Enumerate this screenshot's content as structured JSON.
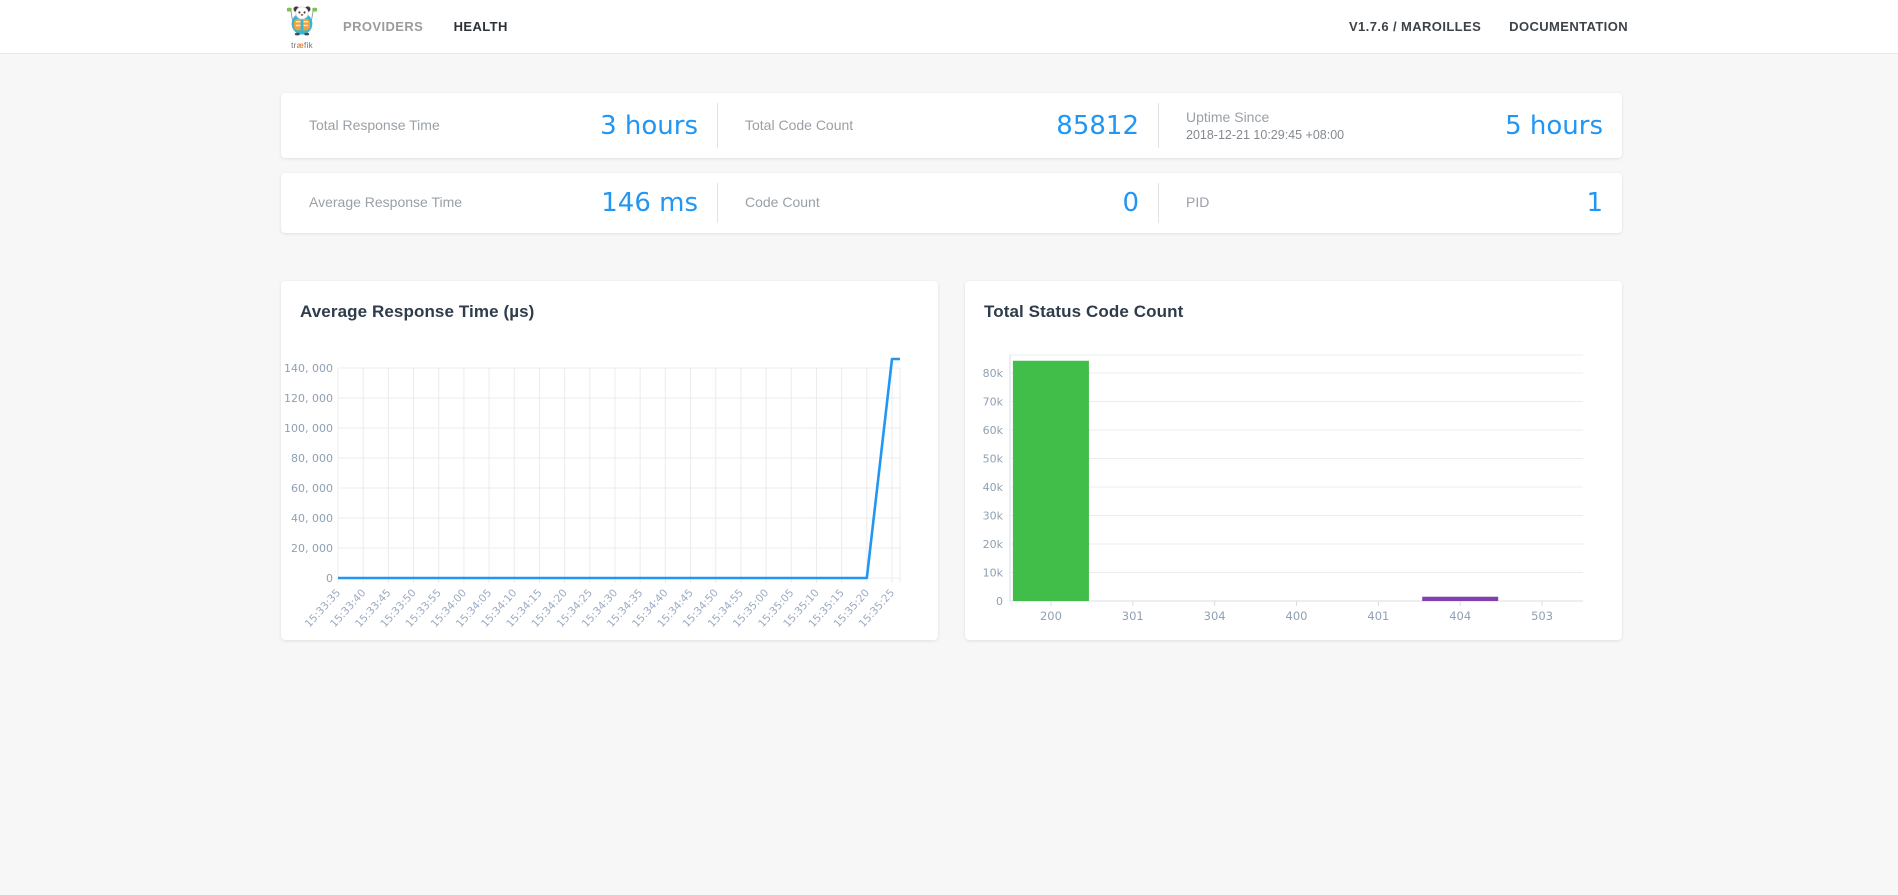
{
  "navbar": {
    "logo": {
      "pre": "tr",
      "mid": "æ",
      "post": "fik"
    },
    "items": [
      {
        "label": "PROVIDERS",
        "active": false
      },
      {
        "label": "HEALTH",
        "active": true
      }
    ],
    "right_items": [
      {
        "label": "V1.7.6 / MAROILLES"
      },
      {
        "label": "DOCUMENTATION"
      }
    ]
  },
  "stats": {
    "row1": [
      {
        "label": "Total Response Time",
        "value": "3 hours"
      },
      {
        "label": "Total Code Count",
        "value": "85812"
      },
      {
        "label": "Uptime Since",
        "sublabel": "2018-12-21 10:29:45 +08:00",
        "value": "5 hours"
      }
    ],
    "row2": [
      {
        "label": "Average Response Time",
        "value": "146 ms"
      },
      {
        "label": "Code Count",
        "value": "0"
      },
      {
        "label": "PID",
        "value": "1"
      }
    ]
  },
  "colors": {
    "accent_blue": "#2196f3",
    "bar_green": "#41bd49",
    "bar_purple": "#8040b0",
    "grid": "#e9ecf0",
    "axis": "#d8dde4",
    "tick_text": "#8fa0b3",
    "x_label_text": "#9cabc2"
  },
  "chart_data": [
    {
      "type": "line",
      "title": "Average Response Time (µs)",
      "x": [
        "15:33:35",
        "15:33:40",
        "15:33:45",
        "15:33:50",
        "15:33:55",
        "15:34:00",
        "15:34:05",
        "15:34:10",
        "15:34:15",
        "15:34:20",
        "15:34:25",
        "15:34:30",
        "15:34:35",
        "15:34:40",
        "15:34:45",
        "15:34:50",
        "15:34:55",
        "15:35:00",
        "15:35:05",
        "15:35:10",
        "15:35:15",
        "15:35:20",
        "15:35:25"
      ],
      "values": [
        0,
        0,
        0,
        0,
        0,
        0,
        0,
        0,
        0,
        0,
        0,
        0,
        0,
        0,
        0,
        0,
        0,
        0,
        0,
        0,
        0,
        0,
        146000
      ],
      "extend_last_to_edge": true,
      "ylim": [
        0,
        146000
      ],
      "yticks": [
        0,
        20000,
        40000,
        60000,
        80000,
        100000,
        120000,
        140000
      ],
      "ytick_labels": [
        "0",
        "20, 000",
        "40, 000",
        "60, 000",
        "80, 000",
        "100, 000",
        "120, 000",
        "140, 000"
      ],
      "grid": "both",
      "legend": "none",
      "line_color": "#2196f3"
    },
    {
      "type": "bar",
      "title": "Total Status Code Count",
      "categories": [
        "200",
        "301",
        "304",
        "400",
        "401",
        "404",
        "503"
      ],
      "values": [
        84300,
        0,
        0,
        0,
        0,
        1500,
        0
      ],
      "bar_colors": [
        "#41bd49",
        null,
        null,
        null,
        null,
        "#8040b0",
        null
      ],
      "ylim": [
        0,
        86000
      ],
      "yticks": [
        0,
        10000,
        20000,
        30000,
        40000,
        50000,
        60000,
        70000,
        80000
      ],
      "ytick_labels": [
        "0",
        "10k",
        "20k",
        "30k",
        "40k",
        "50k",
        "60k",
        "70k",
        "80k"
      ],
      "grid": "horizontal",
      "legend": "none"
    }
  ]
}
